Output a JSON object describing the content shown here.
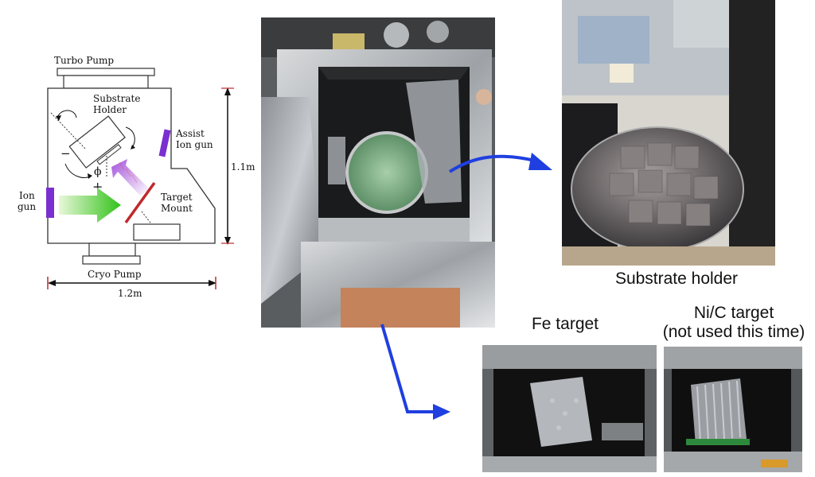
{
  "schematic": {
    "turbo_pump": "Turbo Pump",
    "substrate_holder_line1": "Substrate",
    "substrate_holder_line2": "Holder",
    "assist_ion_gun_line1": "Assist",
    "assist_ion_gun_line2": "Ion gun",
    "ion_gun_line1": "Ion",
    "ion_gun_line2": "gun",
    "target_mount_line1": "Target",
    "target_mount_line2": "Mount",
    "cryo_pump": "Cryo Pump",
    "height_dim": "1.1m",
    "width_dim": "1.2m",
    "phi_symbol": "ϕ",
    "minus_sign": "−",
    "plus_sign": "+"
  },
  "captions": {
    "substrate_holder": "Substrate holder",
    "fe_target": "Fe target",
    "nic_target_line1": "Ni/C target",
    "nic_target_line2": "(not used this time)"
  },
  "colors": {
    "arrow_blue": "#1f3fe0",
    "ion_gun_purple": "#7a2fd1",
    "beam_green": "#33c21a",
    "target_red": "#c0282d"
  }
}
